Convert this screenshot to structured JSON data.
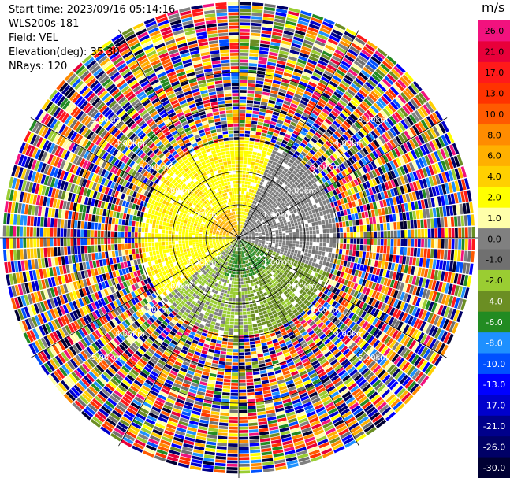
{
  "header": {
    "start_time": "Start time: 2023/09/16 05:14:16",
    "station": "WLS200s-181",
    "field": "Field: VEL",
    "elevation": "Elevation(deg): 35.30",
    "nrays": "NRays: 120"
  },
  "ring_labels": [
    "1.00km",
    "2.00km",
    "3.00km",
    "4.00km",
    "5.00km"
  ],
  "colorbar": {
    "unit": "m/s",
    "ticks": [
      "26.0",
      "21.0",
      "17.0",
      "13.0",
      "10.0",
      "8.0",
      "6.0",
      "4.0",
      "2.0",
      "1.0",
      "0.0",
      "-1.0",
      "-2.0",
      "-4.0",
      "-6.0",
      "-8.0",
      "-10.0",
      "-13.0",
      "-17.0",
      "-21.0",
      "-26.0",
      "-30.0"
    ],
    "colors": [
      "#f2127e",
      "#e8003a",
      "#ff1a1a",
      "#ff3300",
      "#ff5a00",
      "#ff8c00",
      "#ffb000",
      "#ffd000",
      "#ffff00",
      "#ffffaa",
      "#808080",
      "#707070",
      "#9acd32",
      "#6b8e23",
      "#228b22",
      "#1e90ff",
      "#0050ff",
      "#0000ff",
      "#0000cc",
      "#00008b",
      "#000066",
      "#000033"
    ]
  }
}
